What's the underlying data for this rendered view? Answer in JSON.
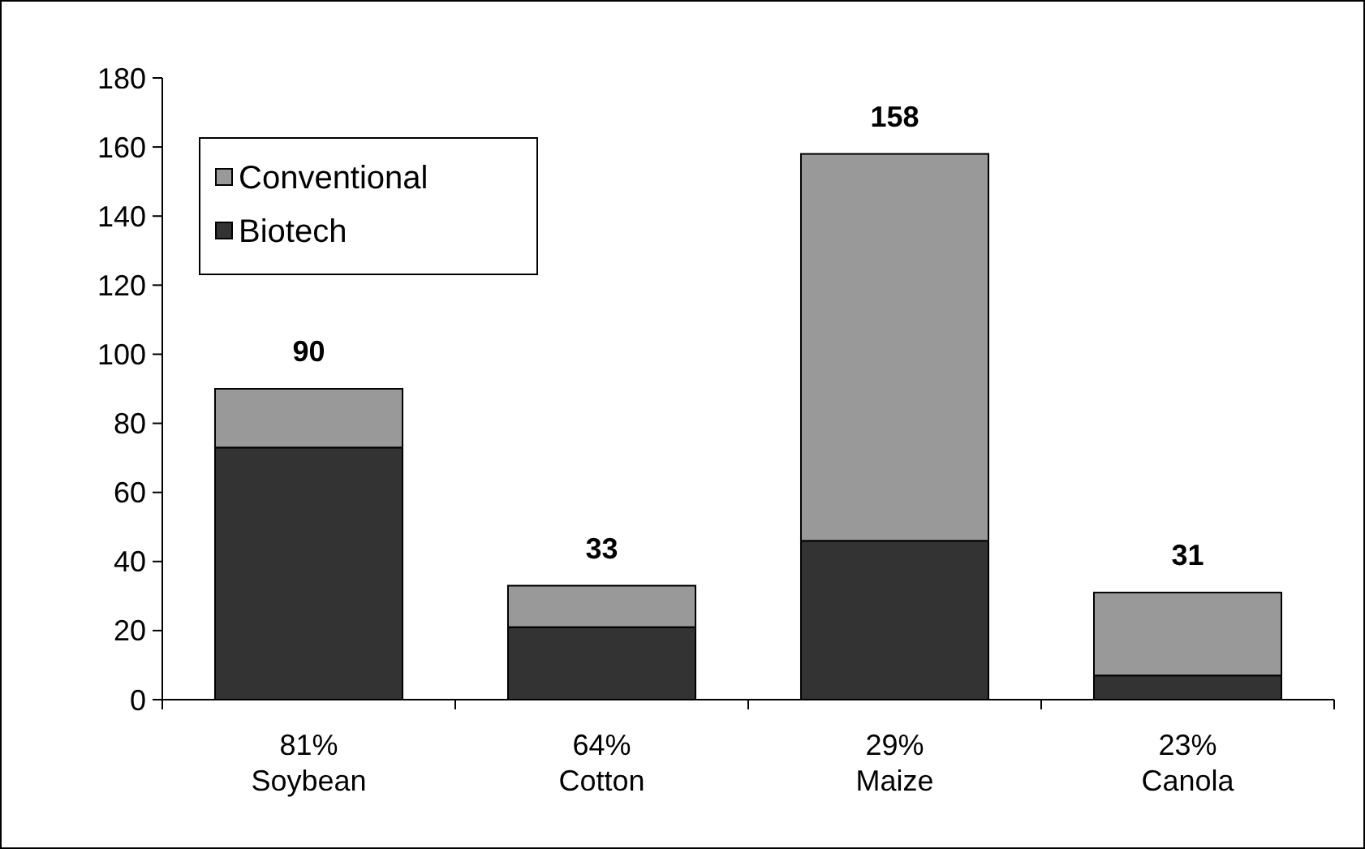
{
  "chart_data": {
    "type": "bar",
    "stacked": true,
    "categories": [
      "81%\nSoybean",
      "64%\nCotton",
      "29%\nMaize",
      "23%\nCanola"
    ],
    "series": [
      {
        "name": "Biotech",
        "color": "#333333",
        "values": [
          73,
          21,
          46,
          7
        ]
      },
      {
        "name": "Conventional",
        "color": "#999999",
        "values": [
          17,
          12,
          112,
          24
        ]
      }
    ],
    "totals": [
      "90",
      "33",
      "158",
      "31"
    ],
    "ylim": [
      0,
      180
    ],
    "yticks": [
      0,
      20,
      40,
      60,
      80,
      100,
      120,
      140,
      160,
      180
    ],
    "grid": false,
    "legend": "top left"
  }
}
